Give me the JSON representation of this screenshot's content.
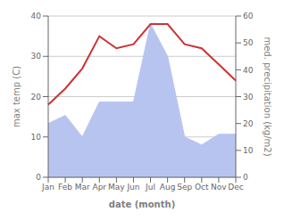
{
  "chart_data": {
    "type": "line",
    "xlabel": "date (month)",
    "ylabel": "max temp (C)",
    "y2label": "med. precipitation (kg/m2)",
    "categories": [
      "Jan",
      "Feb",
      "Mar",
      "Apr",
      "May",
      "Jun",
      "Jul",
      "Aug",
      "Sep",
      "Oct",
      "Nov",
      "Dec"
    ],
    "series": [
      {
        "type": "area",
        "axis": "y2",
        "color": "#b8c4f0",
        "values": [
          20,
          23,
          15,
          28,
          28,
          28,
          57,
          45,
          15,
          12,
          16,
          16
        ]
      },
      {
        "type": "line",
        "color": "#cc3333",
        "values": [
          18,
          22,
          27,
          35,
          32,
          33,
          38,
          38,
          33,
          32,
          28,
          24
        ]
      }
    ],
    "ylim": [
      0,
      40
    ],
    "yticks": [
      0,
      10,
      20,
      30,
      40
    ],
    "y2lim": [
      0,
      60
    ],
    "y2ticks": [
      0,
      10,
      20,
      30,
      40,
      50,
      60
    ],
    "grid": true
  }
}
